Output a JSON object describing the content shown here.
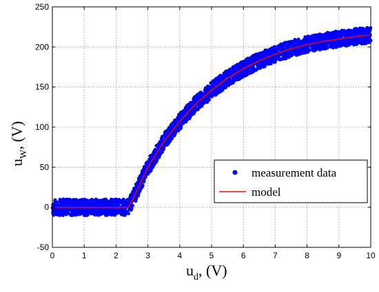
{
  "chart_data": {
    "type": "scatter",
    "xlabel": {
      "main": "u",
      "sub": "d",
      "rest": ", (V)"
    },
    "ylabel": {
      "main": "u",
      "sub": "W",
      "rest": ", (V)"
    },
    "xlim": [
      0,
      10
    ],
    "ylim": [
      -50,
      250
    ],
    "xticks": [
      0,
      1,
      2,
      3,
      4,
      5,
      6,
      7,
      8,
      9,
      10
    ],
    "yticks": [
      -50,
      0,
      50,
      100,
      150,
      200,
      250
    ],
    "grid": true,
    "legend_position": "center-right",
    "series": [
      {
        "name": "measurement data",
        "kind": "scatter-band",
        "color": "#0000ff",
        "x": [
          0,
          0.5,
          1,
          1.5,
          2,
          2.38,
          2.5,
          3,
          3.5,
          4,
          4.5,
          5,
          5.5,
          6,
          6.5,
          7,
          7.5,
          8,
          8.5,
          9,
          9.5,
          10
        ],
        "y_center": [
          0,
          0,
          0,
          0,
          0,
          0,
          8,
          50,
          82,
          107,
          129,
          146,
          161,
          173,
          183,
          191,
          198,
          203,
          207,
          210,
          213,
          215
        ],
        "y_spread": 10
      },
      {
        "name": "model",
        "kind": "line",
        "color": "#ff0000",
        "x": [
          0,
          0.5,
          1,
          1.5,
          2,
          2.38,
          2.5,
          3,
          3.5,
          4,
          4.5,
          5,
          5.5,
          6,
          6.5,
          7,
          7.5,
          8,
          8.5,
          9,
          9.5,
          10
        ],
        "y": [
          0,
          0,
          0,
          0,
          0,
          0,
          8,
          50,
          82,
          107,
          129,
          146,
          161,
          173,
          183,
          191,
          198,
          203,
          207,
          210,
          213,
          215
        ]
      }
    ]
  }
}
